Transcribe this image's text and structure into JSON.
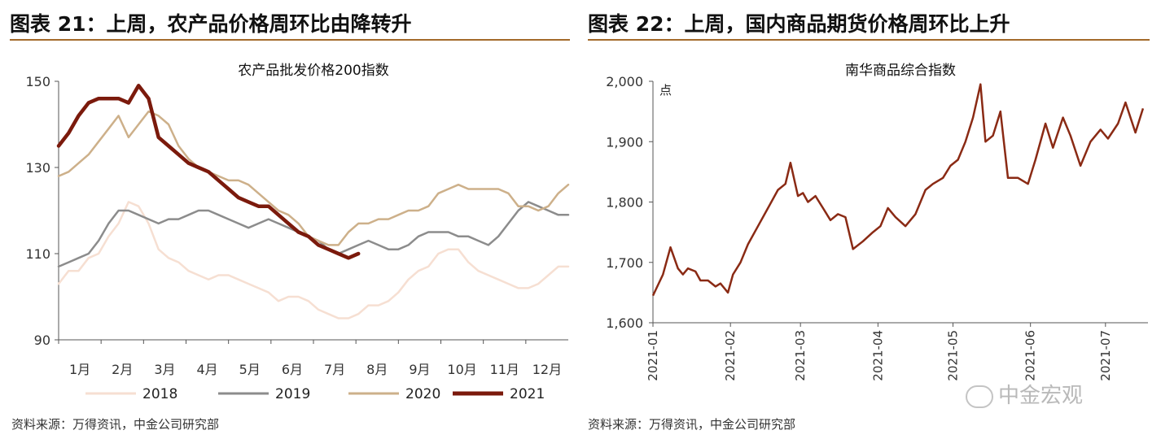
{
  "figure_left": {
    "title": "图表 21：上周，农产品价格周环比由降转升",
    "source": "资料来源：万得资讯，中金公司研究部"
  },
  "figure_right": {
    "title": "图表 22：上周，国内商品期货价格周环比上升",
    "source": "资料来源：万得资讯，中金公司研究部"
  },
  "watermark": "中金宏观",
  "chart_data": [
    {
      "type": "line",
      "title": "农产品批发价格200指数",
      "x_unit": "week",
      "ylim": [
        90,
        150
      ],
      "yticks": [
        90,
        110,
        130,
        150
      ],
      "categories": [
        "1月",
        "2月",
        "3月",
        "4月",
        "5月",
        "6月",
        "7月",
        "8月",
        "9月",
        "10月",
        "11月",
        "12月"
      ],
      "legend_position": "bottom",
      "series": [
        {
          "name": "2018",
          "color": "#f6dfd2",
          "x": [
            1,
            2,
            3,
            4,
            5,
            6,
            7,
            8,
            9,
            10,
            11,
            12,
            13,
            14,
            15,
            16,
            17,
            18,
            19,
            20,
            21,
            22,
            23,
            24,
            25,
            26,
            27,
            28,
            29,
            30,
            31,
            32,
            33,
            34,
            35,
            36,
            37,
            38,
            39,
            40,
            41,
            42,
            43,
            44,
            45,
            46,
            47,
            48,
            49,
            50,
            51,
            52
          ],
          "y": [
            103,
            106,
            106,
            109,
            110,
            114,
            117,
            122,
            121,
            117,
            111,
            109,
            108,
            106,
            105,
            104,
            105,
            105,
            104,
            103,
            102,
            101,
            99,
            100,
            100,
            99,
            97,
            96,
            95,
            95,
            96,
            98,
            98,
            99,
            101,
            104,
            106,
            107,
            110,
            111,
            111,
            108,
            106,
            105,
            104,
            103,
            102,
            102,
            103,
            105,
            107,
            107
          ]
        },
        {
          "name": "2019",
          "color": "#8c8c8c",
          "x": [
            1,
            2,
            3,
            4,
            5,
            6,
            7,
            8,
            9,
            10,
            11,
            12,
            13,
            14,
            15,
            16,
            17,
            18,
            19,
            20,
            21,
            22,
            23,
            24,
            25,
            26,
            27,
            28,
            29,
            30,
            31,
            32,
            33,
            34,
            35,
            36,
            37,
            38,
            39,
            40,
            41,
            42,
            43,
            44,
            45,
            46,
            47,
            48,
            49,
            50,
            51,
            52
          ],
          "y": [
            107,
            108,
            109,
            110,
            113,
            117,
            120,
            120,
            119,
            118,
            117,
            118,
            118,
            119,
            120,
            120,
            119,
            118,
            117,
            116,
            117,
            118,
            117,
            116,
            115,
            114,
            113,
            111,
            110,
            111,
            112,
            113,
            112,
            111,
            111,
            112,
            114,
            115,
            115,
            115,
            114,
            114,
            113,
            112,
            114,
            117,
            120,
            122,
            121,
            120,
            119,
            119
          ]
        },
        {
          "name": "2020",
          "color": "#cdb08a",
          "x": [
            1,
            2,
            3,
            4,
            5,
            6,
            7,
            8,
            9,
            10,
            11,
            12,
            13,
            14,
            15,
            16,
            17,
            18,
            19,
            20,
            21,
            22,
            23,
            24,
            25,
            26,
            27,
            28,
            29,
            30,
            31,
            32,
            33,
            34,
            35,
            36,
            37,
            38,
            39,
            40,
            41,
            42,
            43,
            44,
            45,
            46,
            47,
            48,
            49,
            50,
            51,
            52
          ],
          "y": [
            128,
            129,
            131,
            133,
            136,
            139,
            142,
            137,
            140,
            143,
            142,
            140,
            135,
            132,
            130,
            129,
            128,
            127,
            127,
            126,
            124,
            122,
            120,
            119,
            117,
            114,
            113,
            112,
            112,
            115,
            117,
            117,
            118,
            118,
            119,
            120,
            120,
            121,
            124,
            125,
            126,
            125,
            125,
            125,
            125,
            124,
            121,
            121,
            120,
            121,
            124,
            126
          ]
        },
        {
          "name": "2021",
          "color": "#7b1a0c",
          "x": [
            1,
            2,
            3,
            4,
            5,
            6,
            7,
            8,
            9,
            10,
            11,
            12,
            13,
            14,
            15,
            16,
            17,
            18,
            19,
            20,
            21,
            22,
            23,
            24,
            25,
            26,
            27,
            28,
            29,
            30,
            31
          ],
          "y": [
            135,
            138,
            142,
            145,
            146,
            146,
            146,
            145,
            149,
            146,
            137,
            135,
            133,
            131,
            130,
            129,
            127,
            125,
            123,
            122,
            121,
            121,
            119,
            117,
            115,
            114,
            112,
            111,
            110,
            109,
            110
          ]
        }
      ]
    },
    {
      "type": "line",
      "title": "南华商品综合指数",
      "ylabel": "点",
      "ylim": [
        1600,
        2000
      ],
      "yticks": [
        1600,
        1700,
        1800,
        1900,
        2000
      ],
      "ytick_labels": [
        "1,600",
        "1,700",
        "1,800",
        "1,900",
        "2,000"
      ],
      "x_ticks": [
        "2021-01",
        "2021-02",
        "2021-03",
        "2021-04",
        "2021-05",
        "2021-06",
        "2021-07"
      ],
      "series": [
        {
          "name": "",
          "color": "#8a2a14",
          "x": [
            "2021-01-01",
            "2021-01-05",
            "2021-01-08",
            "2021-01-11",
            "2021-01-13",
            "2021-01-15",
            "2021-01-18",
            "2021-01-20",
            "2021-01-23",
            "2021-01-26",
            "2021-01-28",
            "2021-01-31",
            "2021-02-02",
            "2021-02-05",
            "2021-02-08",
            "2021-02-12",
            "2021-02-16",
            "2021-02-20",
            "2021-02-23",
            "2021-02-25",
            "2021-02-28",
            "2021-03-02",
            "2021-03-04",
            "2021-03-07",
            "2021-03-10",
            "2021-03-13",
            "2021-03-16",
            "2021-03-19",
            "2021-03-22",
            "2021-03-26",
            "2021-03-30",
            "2021-04-02",
            "2021-04-05",
            "2021-04-08",
            "2021-04-12",
            "2021-04-16",
            "2021-04-20",
            "2021-04-23",
            "2021-04-27",
            "2021-04-30",
            "2021-05-03",
            "2021-05-06",
            "2021-05-09",
            "2021-05-12",
            "2021-05-14",
            "2021-05-17",
            "2021-05-20",
            "2021-05-23",
            "2021-05-27",
            "2021-05-31",
            "2021-06-03",
            "2021-06-07",
            "2021-06-10",
            "2021-06-14",
            "2021-06-17",
            "2021-06-21",
            "2021-06-25",
            "2021-06-29",
            "2021-07-02",
            "2021-07-06",
            "2021-07-09",
            "2021-07-13",
            "2021-07-16"
          ],
          "y": [
            1645,
            1680,
            1725,
            1690,
            1680,
            1690,
            1685,
            1670,
            1670,
            1660,
            1665,
            1650,
            1680,
            1700,
            1730,
            1760,
            1790,
            1820,
            1830,
            1865,
            1810,
            1815,
            1800,
            1810,
            1790,
            1770,
            1780,
            1775,
            1722,
            1735,
            1750,
            1760,
            1790,
            1775,
            1760,
            1780,
            1820,
            1830,
            1840,
            1860,
            1870,
            1900,
            1940,
            1995,
            1900,
            1910,
            1950,
            1840,
            1840,
            1830,
            1870,
            1930,
            1890,
            1940,
            1910,
            1860,
            1900,
            1920,
            1905,
            1930,
            1965,
            1915,
            1955
          ]
        }
      ]
    }
  ]
}
